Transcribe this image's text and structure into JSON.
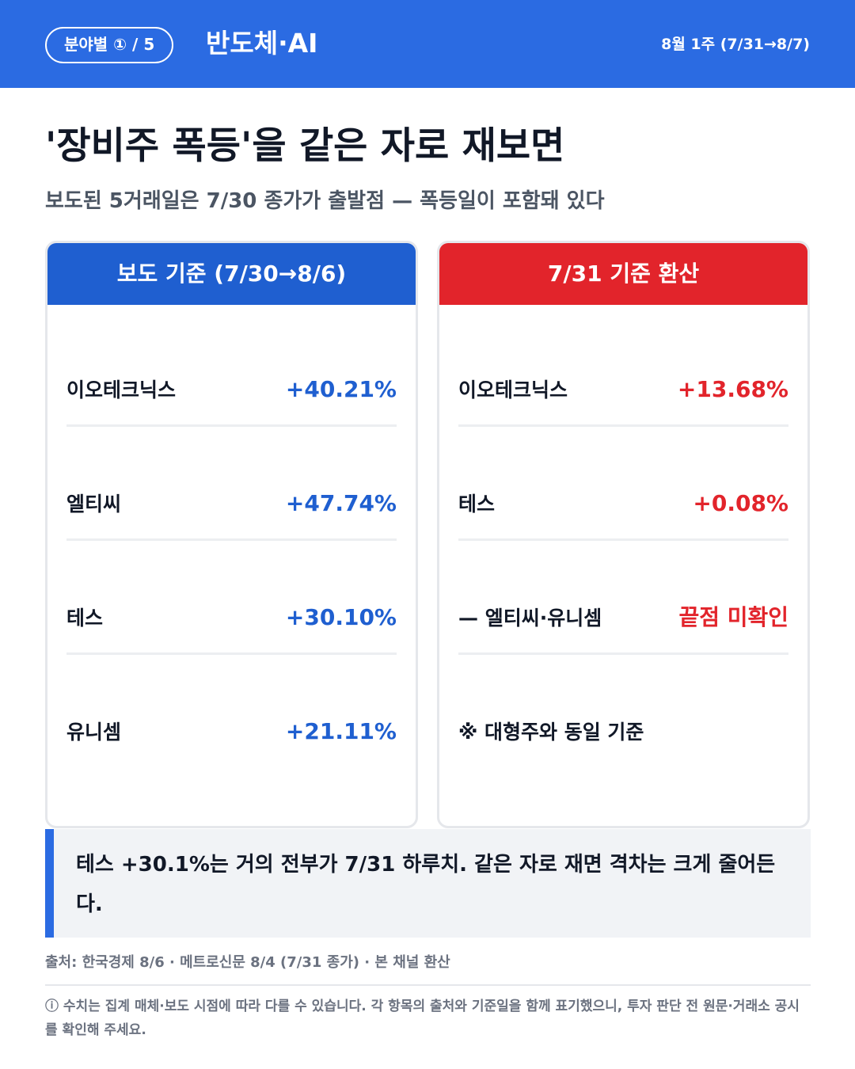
{
  "header": {
    "category_pill": "분야별 ① / 5",
    "title": "반도체·AI",
    "date_range": "8월 1주 (7/31→8/7)"
  },
  "headline": "'장비주 폭등'을 같은 자로 재보면",
  "subheadline": "보도된 5거래일은 7/30 종가가 출발점 — 폭등일이 포함돼 있다",
  "left_card": {
    "title": "보도 기준 (7/30→8/6)",
    "rows": [
      {
        "label": "이오테크닉스",
        "value": "+40.21%"
      },
      {
        "label": "엘티씨",
        "value": "+47.74%"
      },
      {
        "label": "테스",
        "value": "+30.10%"
      },
      {
        "label": "유니셈",
        "value": "+21.11%"
      }
    ]
  },
  "right_card": {
    "title": "7/31 기준 환산",
    "rows": [
      {
        "label": "이오테크닉스",
        "value": "+13.68%"
      },
      {
        "label": "테스",
        "value": "+0.08%"
      },
      {
        "label": "— 엘티씨·유니셈",
        "value": "끝점 미확인"
      },
      {
        "label": "※ 대형주와 동일 기준",
        "value": ""
      }
    ]
  },
  "callout": "테스 +30.1%는 거의 전부가 7/31 하루치. 같은 자로 재면 격차는 크게 줄어든다.",
  "source": "출처: 한국경제 8/6 · 메트로신문 8/4 (7/31 종가) · 본 채널 환산",
  "notice": "ⓘ 수치는 집계 매체·보도 시점에 따라 다를 수 있습니다. 각 항목의 출처와 기준일을 함께 표기했으니, 투자 판단 전 원문·거래소 공시를 확인해 주세요.",
  "colors": {
    "header_blue": "#2b6be2",
    "left_accent": "#1f5fd0",
    "right_accent": "#e2242b"
  }
}
